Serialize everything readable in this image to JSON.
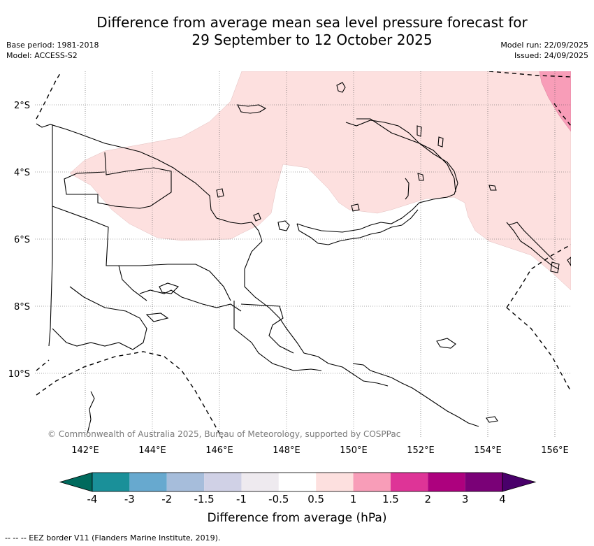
{
  "title": {
    "line1": "Difference from average mean sea level pressure forecast for",
    "line2": "29 September to 12 October 2025"
  },
  "meta_left": {
    "base_period": "Base period: 1981-2018",
    "model": "Model: ACCESS-S2"
  },
  "meta_right": {
    "model_run": "Model run: 22/09/2025",
    "issued": "Issued: 24/09/2025"
  },
  "map": {
    "lat_labels": [
      "2°S",
      "4°S",
      "6°S",
      "8°S",
      "10°S"
    ],
    "lon_labels": [
      "142°E",
      "144°E",
      "146°E",
      "148°E",
      "150°E",
      "152°E",
      "154°E",
      "156°E"
    ],
    "copyright": "© Commonwealth of Australia 2025, Bureau of Meteorology, supported by COSPPac",
    "shading": [
      {
        "range": "0.5 to 1 hPa",
        "color": "#fde0df"
      },
      {
        "range": "1 to 1.5 hPa",
        "color": "#f89db8"
      }
    ]
  },
  "colorbar": {
    "labels": [
      "-4",
      "-3",
      "-2",
      "-1.5",
      "-1",
      "-0.5",
      "0.5",
      "1",
      "1.5",
      "2",
      "3",
      "4"
    ],
    "colors": [
      "#006a5d",
      "#1a9099",
      "#67a9cf",
      "#a6bddb",
      "#d0d1e6",
      "#eeeaef",
      "#ffffff",
      "#fde0df",
      "#f89db8",
      "#de3497",
      "#ad017e",
      "#7a0177",
      "#49006a"
    ],
    "title": "Difference from average (hPa)"
  },
  "legend_note": "-- -- -- EEZ border V11 (Flanders Marine Institute, 2019)."
}
